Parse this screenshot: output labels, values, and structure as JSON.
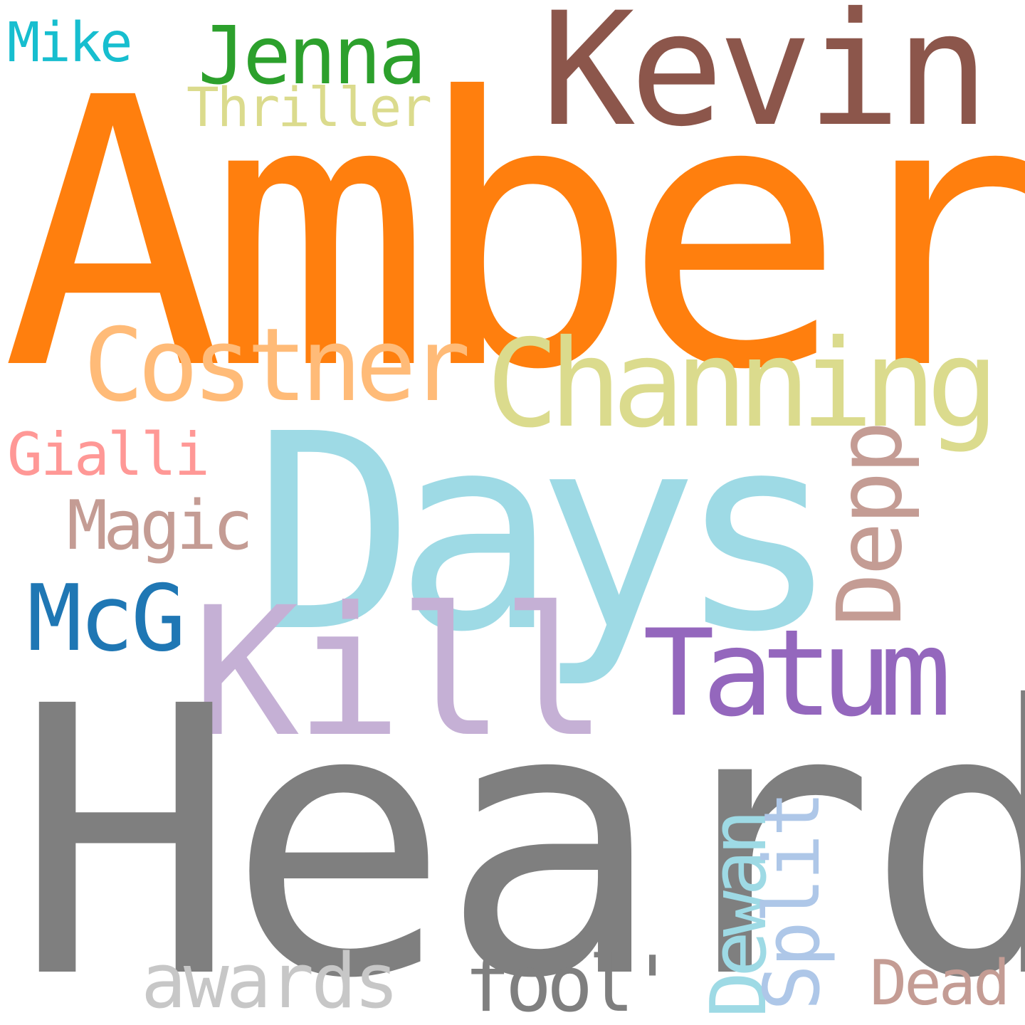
{
  "words": {
    "amber": {
      "text": "Amber",
      "color": "#ff7f0e"
    },
    "heard": {
      "text": "Heard",
      "color": "#7f7f7f"
    },
    "days": {
      "text": "Days",
      "color": "#9edae5"
    },
    "kevin": {
      "text": "Kevin",
      "color": "#8c564b"
    },
    "kill": {
      "text": "Kill",
      "color": "#c5b0d5"
    },
    "channing": {
      "text": "Channing",
      "color": "#dbdb8d"
    },
    "costner": {
      "text": "Costner",
      "color": "#ffbb78"
    },
    "tatum": {
      "text": "Tatum",
      "color": "#9467bd"
    },
    "mcg": {
      "text": "McG",
      "color": "#1f77b4"
    },
    "jenna": {
      "text": "Jenna",
      "color": "#2ca02c"
    },
    "thriller": {
      "text": "Thriller",
      "color": "#dbdb8d"
    },
    "mike": {
      "text": "Mike",
      "color": "#17becf"
    },
    "gialli": {
      "text": "Gialli",
      "color": "#ff9896"
    },
    "magic": {
      "text": "Magic",
      "color": "#c49c94"
    },
    "depp": {
      "text": "Depp",
      "color": "#c49c94"
    },
    "dewan": {
      "text": "Dewan",
      "color": "#9edae5"
    },
    "split": {
      "text": "Split",
      "color": "#aec7e8"
    },
    "awards": {
      "text": "awards",
      "color": "#c7c7c7"
    },
    "fool": {
      "text": "fool'",
      "color": "#7f7f7f"
    },
    "dead": {
      "text": "Dead",
      "color": "#c49c94"
    }
  }
}
